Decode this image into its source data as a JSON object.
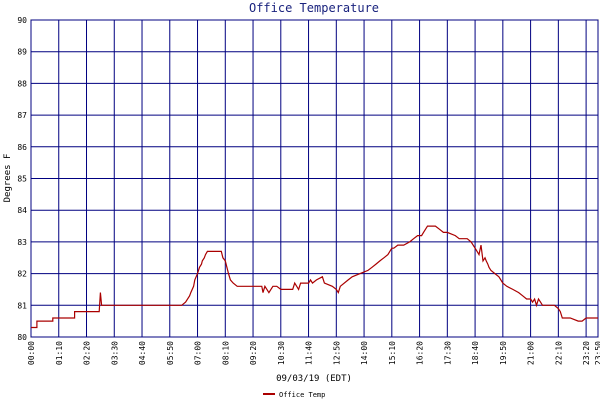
{
  "chart_data": {
    "type": "line",
    "title": "Office Temperature",
    "xlabel": "09/03/19 (EDT)",
    "ylabel": "Degrees F",
    "ylim": [
      80,
      90
    ],
    "xlim": [
      0,
      1430
    ],
    "grid": true,
    "legend_position": "bottom-center",
    "colors": {
      "series": "#aa0000",
      "grid": "#000080",
      "background": "#ffffff"
    },
    "y_ticks": [
      "80",
      "81",
      "82",
      "83",
      "84",
      "85",
      "86",
      "87",
      "88",
      "89",
      "90"
    ],
    "x_ticks": [
      {
        "label": "00:00",
        "minute": 0
      },
      {
        "label": "01:10",
        "minute": 70
      },
      {
        "label": "02:20",
        "minute": 140
      },
      {
        "label": "03:30",
        "minute": 210
      },
      {
        "label": "04:40",
        "minute": 280
      },
      {
        "label": "05:50",
        "minute": 350
      },
      {
        "label": "07:00",
        "minute": 420
      },
      {
        "label": "08:10",
        "minute": 490
      },
      {
        "label": "09:20",
        "minute": 560
      },
      {
        "label": "10:30",
        "minute": 630
      },
      {
        "label": "11:40",
        "minute": 700
      },
      {
        "label": "12:50",
        "minute": 770
      },
      {
        "label": "14:00",
        "minute": 840
      },
      {
        "label": "15:10",
        "minute": 910
      },
      {
        "label": "16:20",
        "minute": 980
      },
      {
        "label": "17:30",
        "minute": 1050
      },
      {
        "label": "18:40",
        "minute": 1120
      },
      {
        "label": "19:50",
        "minute": 1190
      },
      {
        "label": "21:00",
        "minute": 1260
      },
      {
        "label": "22:10",
        "minute": 1330
      },
      {
        "label": "23:20",
        "minute": 1400
      },
      {
        "label": "23:50",
        "minute": 1430
      }
    ],
    "series": [
      {
        "name": "Office Temp",
        "x": [
          0,
          15,
          15,
          55,
          55,
          110,
          110,
          172,
          175,
          178,
          180,
          190,
          300,
          380,
          390,
          400,
          403,
          410,
          413,
          420,
          425,
          430,
          432,
          437,
          440,
          445,
          450,
          453,
          460,
          480,
          484,
          490,
          494,
          498,
          503,
          510,
          520,
          540,
          560,
          582,
          585,
          590,
          595,
          600,
          610,
          620,
          630,
          650,
          660,
          665,
          670,
          675,
          680,
          700,
          705,
          710,
          720,
          735,
          740,
          760,
          770,
          775,
          780,
          800,
          810,
          830,
          850,
          860,
          870,
          880,
          890,
          900,
          910,
          915,
          925,
          935,
          940,
          955,
          965,
          975,
          985,
          990,
          1000,
          1010,
          1020,
          1030,
          1040,
          1050,
          1070,
          1080,
          1090,
          1100,
          1110,
          1115,
          1120,
          1125,
          1130,
          1135,
          1140,
          1145,
          1148,
          1152,
          1155,
          1160,
          1170,
          1180,
          1190,
          1200,
          1215,
          1230,
          1240,
          1250,
          1260,
          1265,
          1270,
          1275,
          1280,
          1285,
          1290,
          1300,
          1320,
          1330,
          1335,
          1340,
          1360,
          1380,
          1390,
          1400,
          1430
        ],
        "y": [
          80.3,
          80.3,
          80.5,
          80.5,
          80.6,
          80.6,
          80.8,
          80.8,
          81.4,
          81.0,
          81.0,
          81.0,
          81.0,
          81.0,
          81.1,
          81.3,
          81.4,
          81.6,
          81.8,
          82.0,
          82.2,
          82.3,
          82.4,
          82.5,
          82.6,
          82.7,
          82.7,
          82.7,
          82.7,
          82.7,
          82.5,
          82.4,
          82.2,
          82.0,
          81.8,
          81.7,
          81.6,
          81.6,
          81.6,
          81.6,
          81.4,
          81.6,
          81.5,
          81.4,
          81.6,
          81.6,
          81.5,
          81.5,
          81.5,
          81.7,
          81.6,
          81.5,
          81.7,
          81.7,
          81.8,
          81.7,
          81.8,
          81.9,
          81.7,
          81.6,
          81.5,
          81.4,
          81.6,
          81.8,
          81.9,
          82.0,
          82.1,
          82.2,
          82.3,
          82.4,
          82.5,
          82.6,
          82.8,
          82.8,
          82.9,
          82.9,
          82.9,
          83.0,
          83.1,
          83.2,
          83.2,
          83.3,
          83.5,
          83.5,
          83.5,
          83.4,
          83.3,
          83.3,
          83.2,
          83.1,
          83.1,
          83.1,
          83.0,
          82.9,
          82.8,
          82.7,
          82.6,
          82.9,
          82.4,
          82.5,
          82.4,
          82.3,
          82.2,
          82.1,
          82.0,
          81.9,
          81.7,
          81.6,
          81.5,
          81.4,
          81.3,
          81.2,
          81.2,
          81.1,
          81.2,
          81.0,
          81.2,
          81.1,
          81.0,
          81.0,
          81.0,
          80.9,
          80.8,
          80.6,
          80.6,
          80.5,
          80.5,
          80.6,
          80.6
        ]
      }
    ]
  }
}
